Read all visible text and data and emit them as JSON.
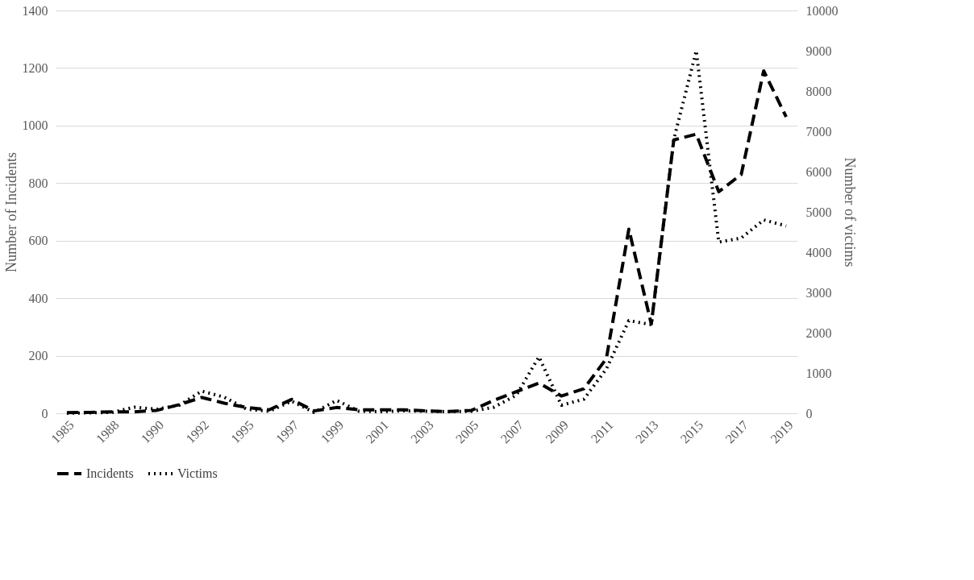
{
  "chart_data": {
    "type": "line",
    "categories": [
      "1985",
      null,
      "1988",
      null,
      "1990",
      null,
      "1992",
      null,
      "1995",
      null,
      "1997",
      null,
      "1999",
      null,
      "2001",
      null,
      "2003",
      null,
      "2005",
      null,
      "2007",
      null,
      "2009",
      null,
      "2011",
      null,
      "2013",
      null,
      "2015",
      null,
      "2017",
      null,
      "2019"
    ],
    "series": [
      {
        "name": "Incidents",
        "color": "#000000",
        "line_style": "dashed",
        "values": [
          2,
          3,
          5,
          5,
          10,
          30,
          55,
          35,
          20,
          12,
          48,
          8,
          20,
          12,
          12,
          12,
          8,
          6,
          10,
          45,
          75,
          105,
          60,
          85,
          190,
          640,
          310,
          950,
          970,
          770,
          830,
          1190,
          1030
        ]
      },
      {
        "name": "Victims",
        "color": "#000000",
        "line_style": "dotted",
        "axis": "y2",
        "values": [
          0,
          10,
          20,
          150,
          100,
          200,
          550,
          400,
          100,
          50,
          300,
          20,
          320,
          50,
          40,
          60,
          50,
          40,
          50,
          150,
          450,
          1400,
          200,
          350,
          1100,
          2300,
          2200,
          6800,
          9000,
          4250,
          4350,
          4800,
          4650
        ]
      }
    ],
    "ylabel": "Number of Incidents",
    "y2label": "Number of victims",
    "ylim": [
      0,
      1400
    ],
    "yticks": [
      0,
      200,
      400,
      600,
      800,
      1000,
      1200,
      1400
    ],
    "y2lim": [
      0,
      10000
    ],
    "y2ticks": [
      0,
      1000,
      2000,
      3000,
      4000,
      5000,
      6000,
      7000,
      8000,
      9000,
      10000
    ],
    "grid": "y",
    "legend": "bottom"
  }
}
